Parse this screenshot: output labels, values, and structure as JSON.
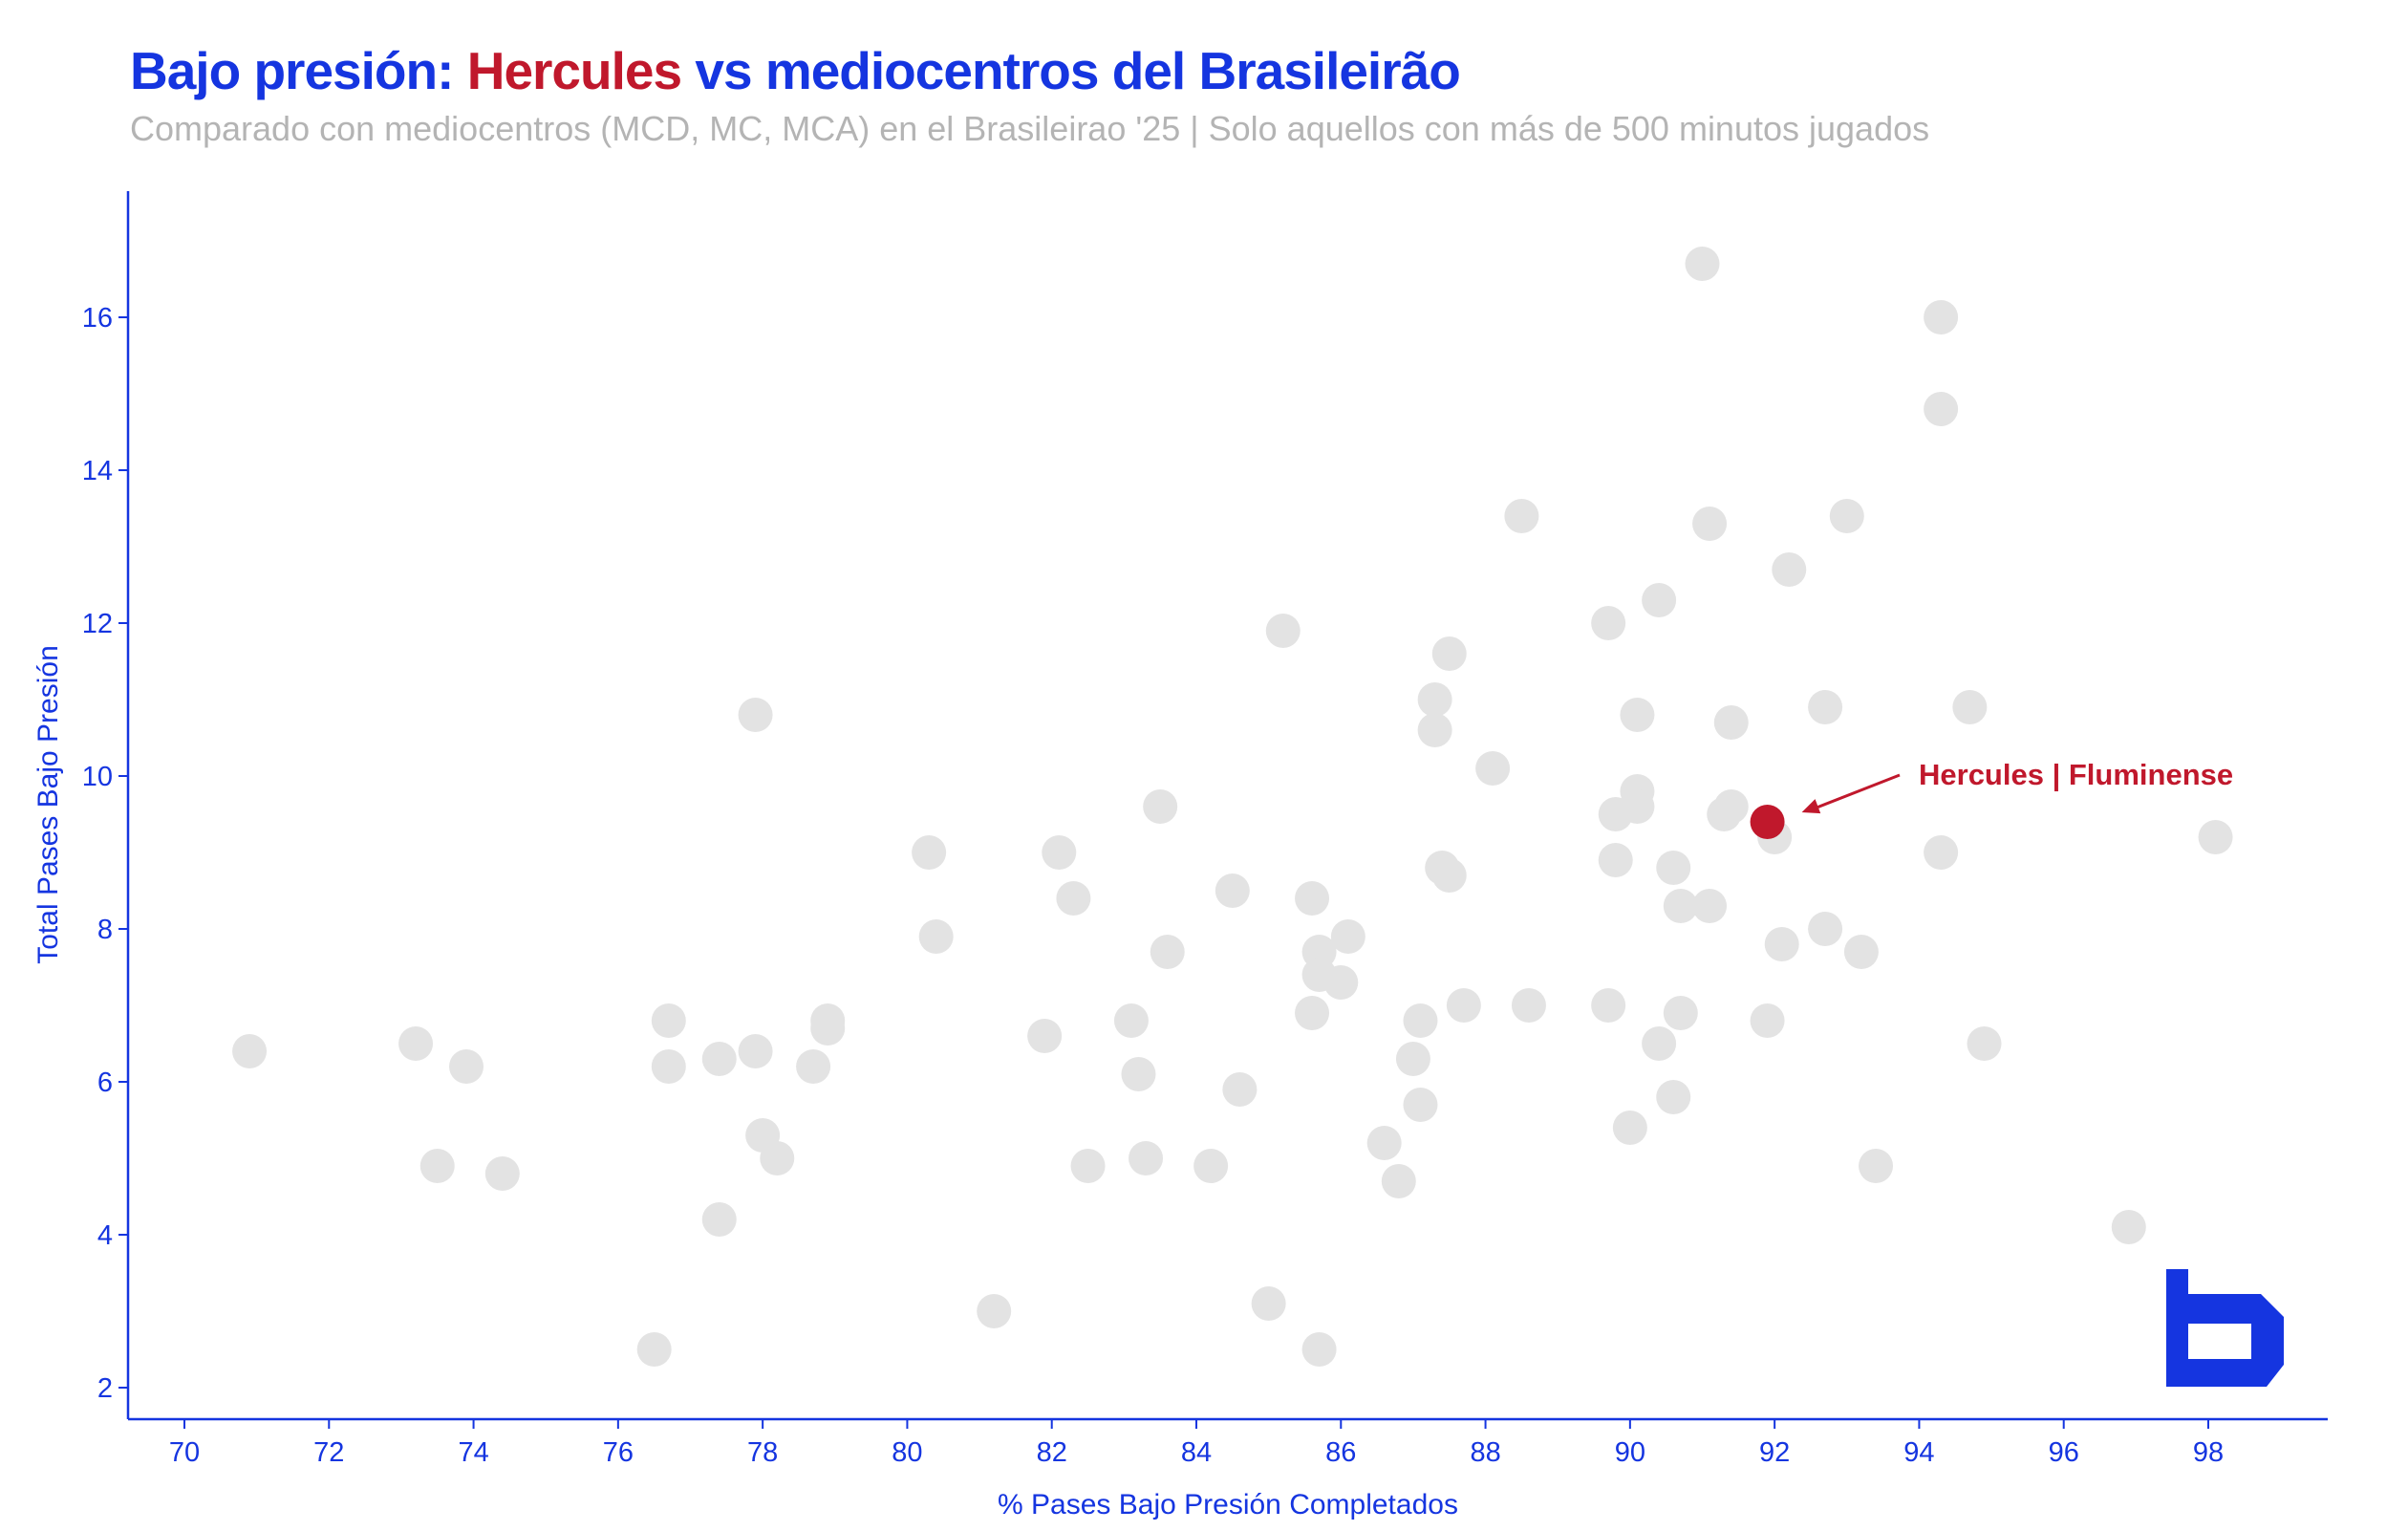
{
  "header": {
    "title_prefix": "Bajo presión: ",
    "title_highlight": "Hercules",
    "title_suffix": " vs mediocentros del Brasileirão",
    "subtitle": "Comparado con mediocentros (MCD, MC, MCA) en el Brasileirao '25 | Solo aquellos con más de 500 minutos jugados"
  },
  "colors": {
    "accent": "#1535E0",
    "highlight": "#C0182C",
    "point": "#E3E3E3",
    "subtitle": "#B4B4B4"
  },
  "logo": {
    "icon": "b-logo-icon"
  },
  "chart_data": {
    "type": "scatter",
    "xlabel": "% Pases Bajo Presión Completados",
    "ylabel": "Total Pases Bajo Presión",
    "xlim": [
      69.2,
      99.6
    ],
    "ylim": [
      1.6,
      17.6
    ],
    "xticks": [
      70,
      72,
      74,
      76,
      78,
      80,
      82,
      84,
      86,
      88,
      90,
      92,
      94,
      96,
      98
    ],
    "yticks": [
      2,
      4,
      6,
      8,
      10,
      12,
      14,
      16
    ],
    "grid": false,
    "highlight": {
      "label": "Hercules | Fluminense",
      "x": 91.9,
      "y": 9.4
    },
    "points": [
      [
        70.9,
        6.4
      ],
      [
        73.2,
        6.5
      ],
      [
        73.5,
        4.9
      ],
      [
        73.9,
        6.2
      ],
      [
        74.4,
        4.8
      ],
      [
        76.5,
        2.5
      ],
      [
        76.7,
        6.8
      ],
      [
        76.7,
        6.2
      ],
      [
        77.4,
        6.3
      ],
      [
        77.4,
        4.2
      ],
      [
        77.9,
        10.8
      ],
      [
        77.9,
        6.4
      ],
      [
        78.0,
        5.3
      ],
      [
        78.2,
        5.0
      ],
      [
        78.7,
        6.2
      ],
      [
        78.9,
        6.8
      ],
      [
        78.9,
        6.7
      ],
      [
        80.3,
        9.0
      ],
      [
        80.4,
        7.9
      ],
      [
        81.2,
        3.0
      ],
      [
        81.9,
        6.6
      ],
      [
        82.1,
        9.0
      ],
      [
        82.3,
        8.4
      ],
      [
        82.5,
        4.9
      ],
      [
        83.1,
        6.8
      ],
      [
        83.2,
        6.1
      ],
      [
        83.3,
        5.0
      ],
      [
        83.5,
        9.6
      ],
      [
        83.6,
        7.7
      ],
      [
        84.2,
        4.9
      ],
      [
        84.5,
        8.5
      ],
      [
        84.6,
        5.9
      ],
      [
        85.0,
        3.1
      ],
      [
        85.2,
        11.9
      ],
      [
        85.6,
        8.4
      ],
      [
        85.6,
        6.9
      ],
      [
        85.7,
        7.7
      ],
      [
        85.7,
        7.4
      ],
      [
        85.7,
        2.5
      ],
      [
        86.0,
        7.3
      ],
      [
        86.1,
        7.9
      ],
      [
        86.6,
        5.2
      ],
      [
        86.8,
        4.7
      ],
      [
        87.0,
        6.3
      ],
      [
        87.1,
        6.8
      ],
      [
        87.1,
        5.7
      ],
      [
        87.3,
        11.0
      ],
      [
        87.3,
        10.6
      ],
      [
        87.4,
        8.8
      ],
      [
        87.5,
        11.6
      ],
      [
        87.5,
        8.7
      ],
      [
        87.7,
        7.0
      ],
      [
        88.1,
        10.1
      ],
      [
        88.5,
        13.4
      ],
      [
        88.6,
        7.0
      ],
      [
        89.7,
        12.0
      ],
      [
        89.7,
        7.0
      ],
      [
        89.8,
        9.5
      ],
      [
        89.8,
        8.9
      ],
      [
        90.0,
        5.4
      ],
      [
        90.1,
        10.8
      ],
      [
        90.1,
        9.8
      ],
      [
        90.1,
        9.6
      ],
      [
        90.4,
        12.3
      ],
      [
        90.4,
        6.5
      ],
      [
        90.6,
        8.8
      ],
      [
        90.6,
        5.8
      ],
      [
        90.7,
        8.3
      ],
      [
        90.7,
        6.9
      ],
      [
        91.0,
        16.7
      ],
      [
        91.1,
        13.3
      ],
      [
        91.1,
        8.3
      ],
      [
        91.3,
        9.5
      ],
      [
        91.4,
        10.7
      ],
      [
        91.4,
        9.6
      ],
      [
        92.0,
        9.2
      ],
      [
        91.9,
        6.8
      ],
      [
        92.1,
        7.8
      ],
      [
        92.2,
        12.7
      ],
      [
        92.7,
        10.9
      ],
      [
        92.7,
        8.0
      ],
      [
        93.0,
        13.4
      ],
      [
        93.2,
        7.7
      ],
      [
        93.4,
        4.9
      ],
      [
        94.3,
        16.0
      ],
      [
        94.3,
        14.8
      ],
      [
        94.3,
        9.0
      ],
      [
        94.7,
        10.9
      ],
      [
        94.9,
        6.5
      ],
      [
        96.9,
        4.1
      ],
      [
        98.1,
        9.2
      ]
    ]
  }
}
